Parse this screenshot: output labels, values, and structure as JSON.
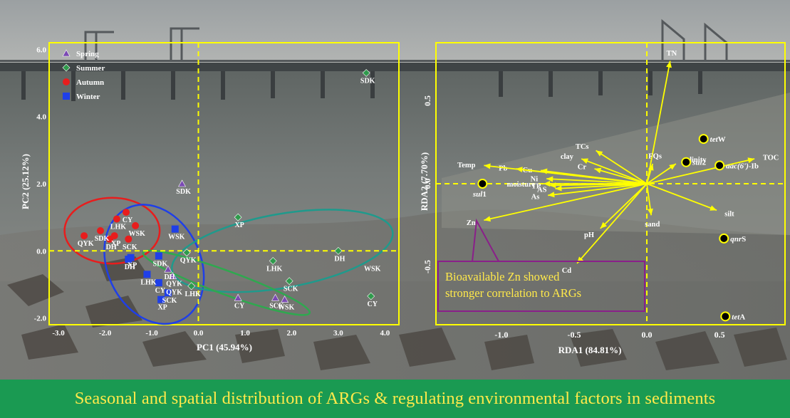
{
  "banner": {
    "text": "Seasonal and spatial distribution of ARGs & regulating environmental factors in sediments",
    "background": "#1a9a52",
    "color": "#ffe94a"
  },
  "colors": {
    "frame": "#ffff00",
    "spring": "#7b4ab3",
    "summer": "#2f9a4c",
    "autumn": "#e81d1d",
    "winter": "#1f3fe8",
    "ellipse_red": "#e81d1d",
    "ellipse_blue": "#1f3fe8",
    "ellipse_teal": "#1f9a8c",
    "ellipse_green": "#2fa84f",
    "callout_border": "#8a1f8a",
    "label_text": "#ffffff"
  },
  "chart_data": [
    {
      "type": "scatter",
      "xlabel": "PC1 (45.94%)",
      "ylabel": "PC2 (25.12%)",
      "xlim": [
        -3.2,
        4.3
      ],
      "ylim": [
        -2.2,
        6.2
      ],
      "xticks": [
        {
          "value": -3.0,
          "label": "-3.0"
        },
        {
          "value": -2.0,
          "label": "-2.0"
        },
        {
          "value": -1.0,
          "label": "-1.0"
        },
        {
          "value": 0.0,
          "label": "0.0"
        },
        {
          "value": 1.0,
          "label": "1.0"
        },
        {
          "value": 2.0,
          "label": "2.0"
        },
        {
          "value": 3.0,
          "label": "3.0"
        },
        {
          "value": 4.0,
          "label": "4.0"
        }
      ],
      "yticks": [
        {
          "value": 6.0,
          "label": "6.0"
        },
        {
          "value": 4.0,
          "label": "4.0"
        },
        {
          "value": 2.0,
          "label": "2.0"
        },
        {
          "value": 0.0,
          "label": "0.0"
        },
        {
          "value": -2.0,
          "label": "-2.0"
        }
      ],
      "legend_position": "top-left",
      "reference_lines": {
        "x": 0.0,
        "y": 0.0
      },
      "series": [
        {
          "name": "Spring",
          "marker": "triangle",
          "color": "#7b4ab3",
          "points": [
            {
              "label": "SDK",
              "x": -0.35,
              "y": 2.0
            },
            {
              "label": "QYK",
              "x": -0.55,
              "y": -0.75
            },
            {
              "label": "DH",
              "x": -0.65,
              "y": -0.55
            },
            {
              "label": "CY",
              "x": 0.85,
              "y": -1.4
            },
            {
              "label": "SCK",
              "x": 1.65,
              "y": -1.4
            },
            {
              "label": "WSK",
              "x": 1.85,
              "y": -1.45
            }
          ]
        },
        {
          "name": "Summer",
          "marker": "diamond",
          "color": "#2f9a4c",
          "points": [
            {
              "label": "SDK",
              "x": 3.6,
              "y": 5.3
            },
            {
              "label": "XP",
              "x": 0.85,
              "y": 1.0
            },
            {
              "label": "QYK",
              "x": -0.25,
              "y": -0.05
            },
            {
              "label": "LHK",
              "x": 1.6,
              "y": -0.3
            },
            {
              "label": "SCK",
              "x": 1.95,
              "y": -0.9
            },
            {
              "label": "CY",
              "x": 3.7,
              "y": -1.35
            },
            {
              "label": "DH",
              "x": 3.0,
              "y": 0.0
            },
            {
              "label": "LHK",
              "x": -0.15,
              "y": -1.05
            }
          ]
        },
        {
          "name": "Autumn",
          "marker": "circle",
          "color": "#e81d1d",
          "points": [
            {
              "label": "CY",
              "x": -1.55,
              "y": 1.15
            },
            {
              "label": "LHK",
              "x": -1.75,
              "y": 0.95
            },
            {
              "label": "WSK",
              "x": -1.35,
              "y": 0.75
            },
            {
              "label": "SDK",
              "x": -2.1,
              "y": 0.6
            },
            {
              "label": "XP",
              "x": -1.8,
              "y": 0.45
            },
            {
              "label": "QYK",
              "x": -2.45,
              "y": 0.45
            },
            {
              "label": "DH",
              "x": -1.9,
              "y": 0.35
            },
            {
              "label": "SCK",
              "x": -1.5,
              "y": 0.35
            }
          ]
        },
        {
          "name": "Winter",
          "marker": "square",
          "color": "#1f3fe8",
          "points": [
            {
              "label": "WSK",
              "x": -0.5,
              "y": 0.65
            },
            {
              "label": "XP",
              "x": -1.45,
              "y": -0.2
            },
            {
              "label": "SDK",
              "x": -0.85,
              "y": -0.15
            },
            {
              "label": "DH",
              "x": -1.5,
              "y": -0.25
            },
            {
              "label": "LHK",
              "x": -1.1,
              "y": -0.7
            },
            {
              "label": "CY",
              "x": -0.85,
              "y": -0.95
            },
            {
              "label": "SCK",
              "x": -0.65,
              "y": -1.25
            },
            {
              "label": "XP",
              "x": -0.8,
              "y": -1.45
            }
          ]
        }
      ],
      "point_labels": [
        {
          "text": "SDK",
          "x": 3.6,
          "y": 5.3
        },
        {
          "text": "SDK",
          "x": -0.35,
          "y": 2.0
        },
        {
          "text": "XP",
          "x": 0.85,
          "y": 1.0
        },
        {
          "text": "CY",
          "x": -1.55,
          "y": 1.15
        },
        {
          "text": "LHK",
          "x": -1.75,
          "y": 0.95
        },
        {
          "text": "WSK",
          "x": -1.35,
          "y": 0.75
        },
        {
          "text": "SDK",
          "x": -2.1,
          "y": 0.6
        },
        {
          "text": "QYK",
          "x": -2.45,
          "y": 0.45
        },
        {
          "text": "XP",
          "x": -1.8,
          "y": 0.45
        },
        {
          "text": "DH",
          "x": -1.9,
          "y": 0.35
        },
        {
          "text": "SCK",
          "x": -1.5,
          "y": 0.35
        },
        {
          "text": "WSK",
          "x": -0.5,
          "y": 0.65
        },
        {
          "text": "XP",
          "x": -1.45,
          "y": -0.2
        },
        {
          "text": "DH",
          "x": -1.5,
          "y": -0.25
        },
        {
          "text": "SDK",
          "x": -0.85,
          "y": -0.15
        },
        {
          "text": "QYK",
          "x": -0.25,
          "y": -0.05
        },
        {
          "text": "DH",
          "x": -0.65,
          "y": -0.55
        },
        {
          "text": "QYK",
          "x": -0.55,
          "y": -0.75
        },
        {
          "text": "LHK",
          "x": -1.1,
          "y": -0.7
        },
        {
          "text": "CY",
          "x": -0.85,
          "y": -0.95
        },
        {
          "text": "QYK",
          "x": -0.55,
          "y": -1.0
        },
        {
          "text": "LHK",
          "x": -0.15,
          "y": -1.05
        },
        {
          "text": "SCK",
          "x": -0.65,
          "y": -1.25
        },
        {
          "text": "XP",
          "x": -0.8,
          "y": -1.45
        },
        {
          "text": "LHK",
          "x": 1.6,
          "y": -0.3
        },
        {
          "text": "DH",
          "x": 3.0,
          "y": 0.0
        },
        {
          "text": "WSK",
          "x": 3.7,
          "y": -0.3
        },
        {
          "text": "SCK",
          "x": 1.95,
          "y": -0.9
        },
        {
          "text": "CY",
          "x": 0.85,
          "y": -1.4
        },
        {
          "text": "SCK",
          "x": 1.65,
          "y": -1.4
        },
        {
          "text": "WSK",
          "x": 1.85,
          "y": -1.45
        },
        {
          "text": "CY",
          "x": 3.7,
          "y": -1.35
        }
      ],
      "ellipses": [
        {
          "color": "#e81d1d",
          "cx": -1.85,
          "cy": 0.6,
          "rx": 1.02,
          "ry": 0.98,
          "angle": 0
        },
        {
          "color": "#1f3fe8",
          "cx": -0.95,
          "cy": -0.4,
          "rx": 1.0,
          "ry": 1.85,
          "angle": 25
        },
        {
          "color": "#1f9a8c",
          "cx": 1.8,
          "cy": 0.0,
          "rx": 2.4,
          "ry": 1.1,
          "angle": 10
        },
        {
          "color": "#2fa84f",
          "cx": 0.6,
          "cy": -0.95,
          "rx": 1.9,
          "ry": 0.35,
          "angle": -20
        }
      ]
    },
    {
      "type": "scatter",
      "subtype": "biplot",
      "xlabel": "RDA1 (84.81%)",
      "ylabel": "RDA2 (7.70%)",
      "xlim": [
        -1.45,
        0.95
      ],
      "ylim": [
        -0.85,
        0.85
      ],
      "xticks": [
        {
          "value": -1.0,
          "label": "-1.0"
        },
        {
          "value": -0.5,
          "label": "-0.5"
        },
        {
          "value": 0.0,
          "label": "0.0"
        },
        {
          "value": 0.5,
          "label": "0.5"
        }
      ],
      "yticks": [
        {
          "value": 0.5,
          "label": "0.5"
        },
        {
          "value": 0.0,
          "label": "0.0"
        },
        {
          "value": -0.5,
          "label": "-0.5"
        }
      ],
      "reference_lines": {
        "x": 0.0,
        "y": 0.0
      },
      "arrows": [
        {
          "label": "TN",
          "x": 0.16,
          "y": 0.74
        },
        {
          "label": "TOC",
          "x": 0.74,
          "y": 0.15
        },
        {
          "label": "salinity",
          "x": 0.2,
          "y": 0.12
        },
        {
          "label": "FQs",
          "x": 0.04,
          "y": 0.12
        },
        {
          "label": "TCs",
          "x": -0.35,
          "y": 0.2
        },
        {
          "label": "clay",
          "x": -0.45,
          "y": 0.15
        },
        {
          "label": "Cr",
          "x": -0.36,
          "y": 0.09
        },
        {
          "label": "Cu",
          "x": -0.73,
          "y": 0.08
        },
        {
          "label": "Pb",
          "x": -0.9,
          "y": 0.09
        },
        {
          "label": "Ni",
          "x": -0.69,
          "y": 0.03
        },
        {
          "label": "Temp",
          "x": -1.12,
          "y": 0.11
        },
        {
          "label": "moisture",
          "x": -0.71,
          "y": 0.0
        },
        {
          "label": "TP",
          "x": -0.67,
          "y": -0.01
        },
        {
          "label": "AS",
          "x": -0.63,
          "y": -0.03
        },
        {
          "label": "As",
          "x": -0.68,
          "y": -0.07
        },
        {
          "label": "Zn",
          "x": -1.12,
          "y": -0.22
        },
        {
          "label": "pH",
          "x": -0.32,
          "y": -0.27
        },
        {
          "label": "Cd",
          "x": -0.48,
          "y": -0.48
        },
        {
          "label": "sand",
          "x": 0.03,
          "y": -0.19
        },
        {
          "label": "silt",
          "x": 0.48,
          "y": -0.16
        }
      ],
      "points": [
        {
          "label": "tetW",
          "italic": "tet",
          "rest": "W",
          "x": 0.39,
          "y": 0.27
        },
        {
          "label": "sul2",
          "italic": "sul",
          "rest": "2",
          "x": 0.27,
          "y": 0.13
        },
        {
          "label": "aac(6')-Ib",
          "italic": "aac(6')",
          "rest": "-Ib",
          "x": 0.5,
          "y": 0.11
        },
        {
          "label": "sul1",
          "italic": "sul",
          "rest": "1",
          "x": -1.13,
          "y": 0.0
        },
        {
          "label": "qnrS",
          "italic": "qnr",
          "rest": "S",
          "x": 0.53,
          "y": -0.33
        },
        {
          "label": "tetA",
          "italic": "tet",
          "rest": "A",
          "x": 0.54,
          "y": -0.8
        }
      ],
      "callout": "Bioavailable Zn showed stronger correlation to ARGs"
    }
  ]
}
